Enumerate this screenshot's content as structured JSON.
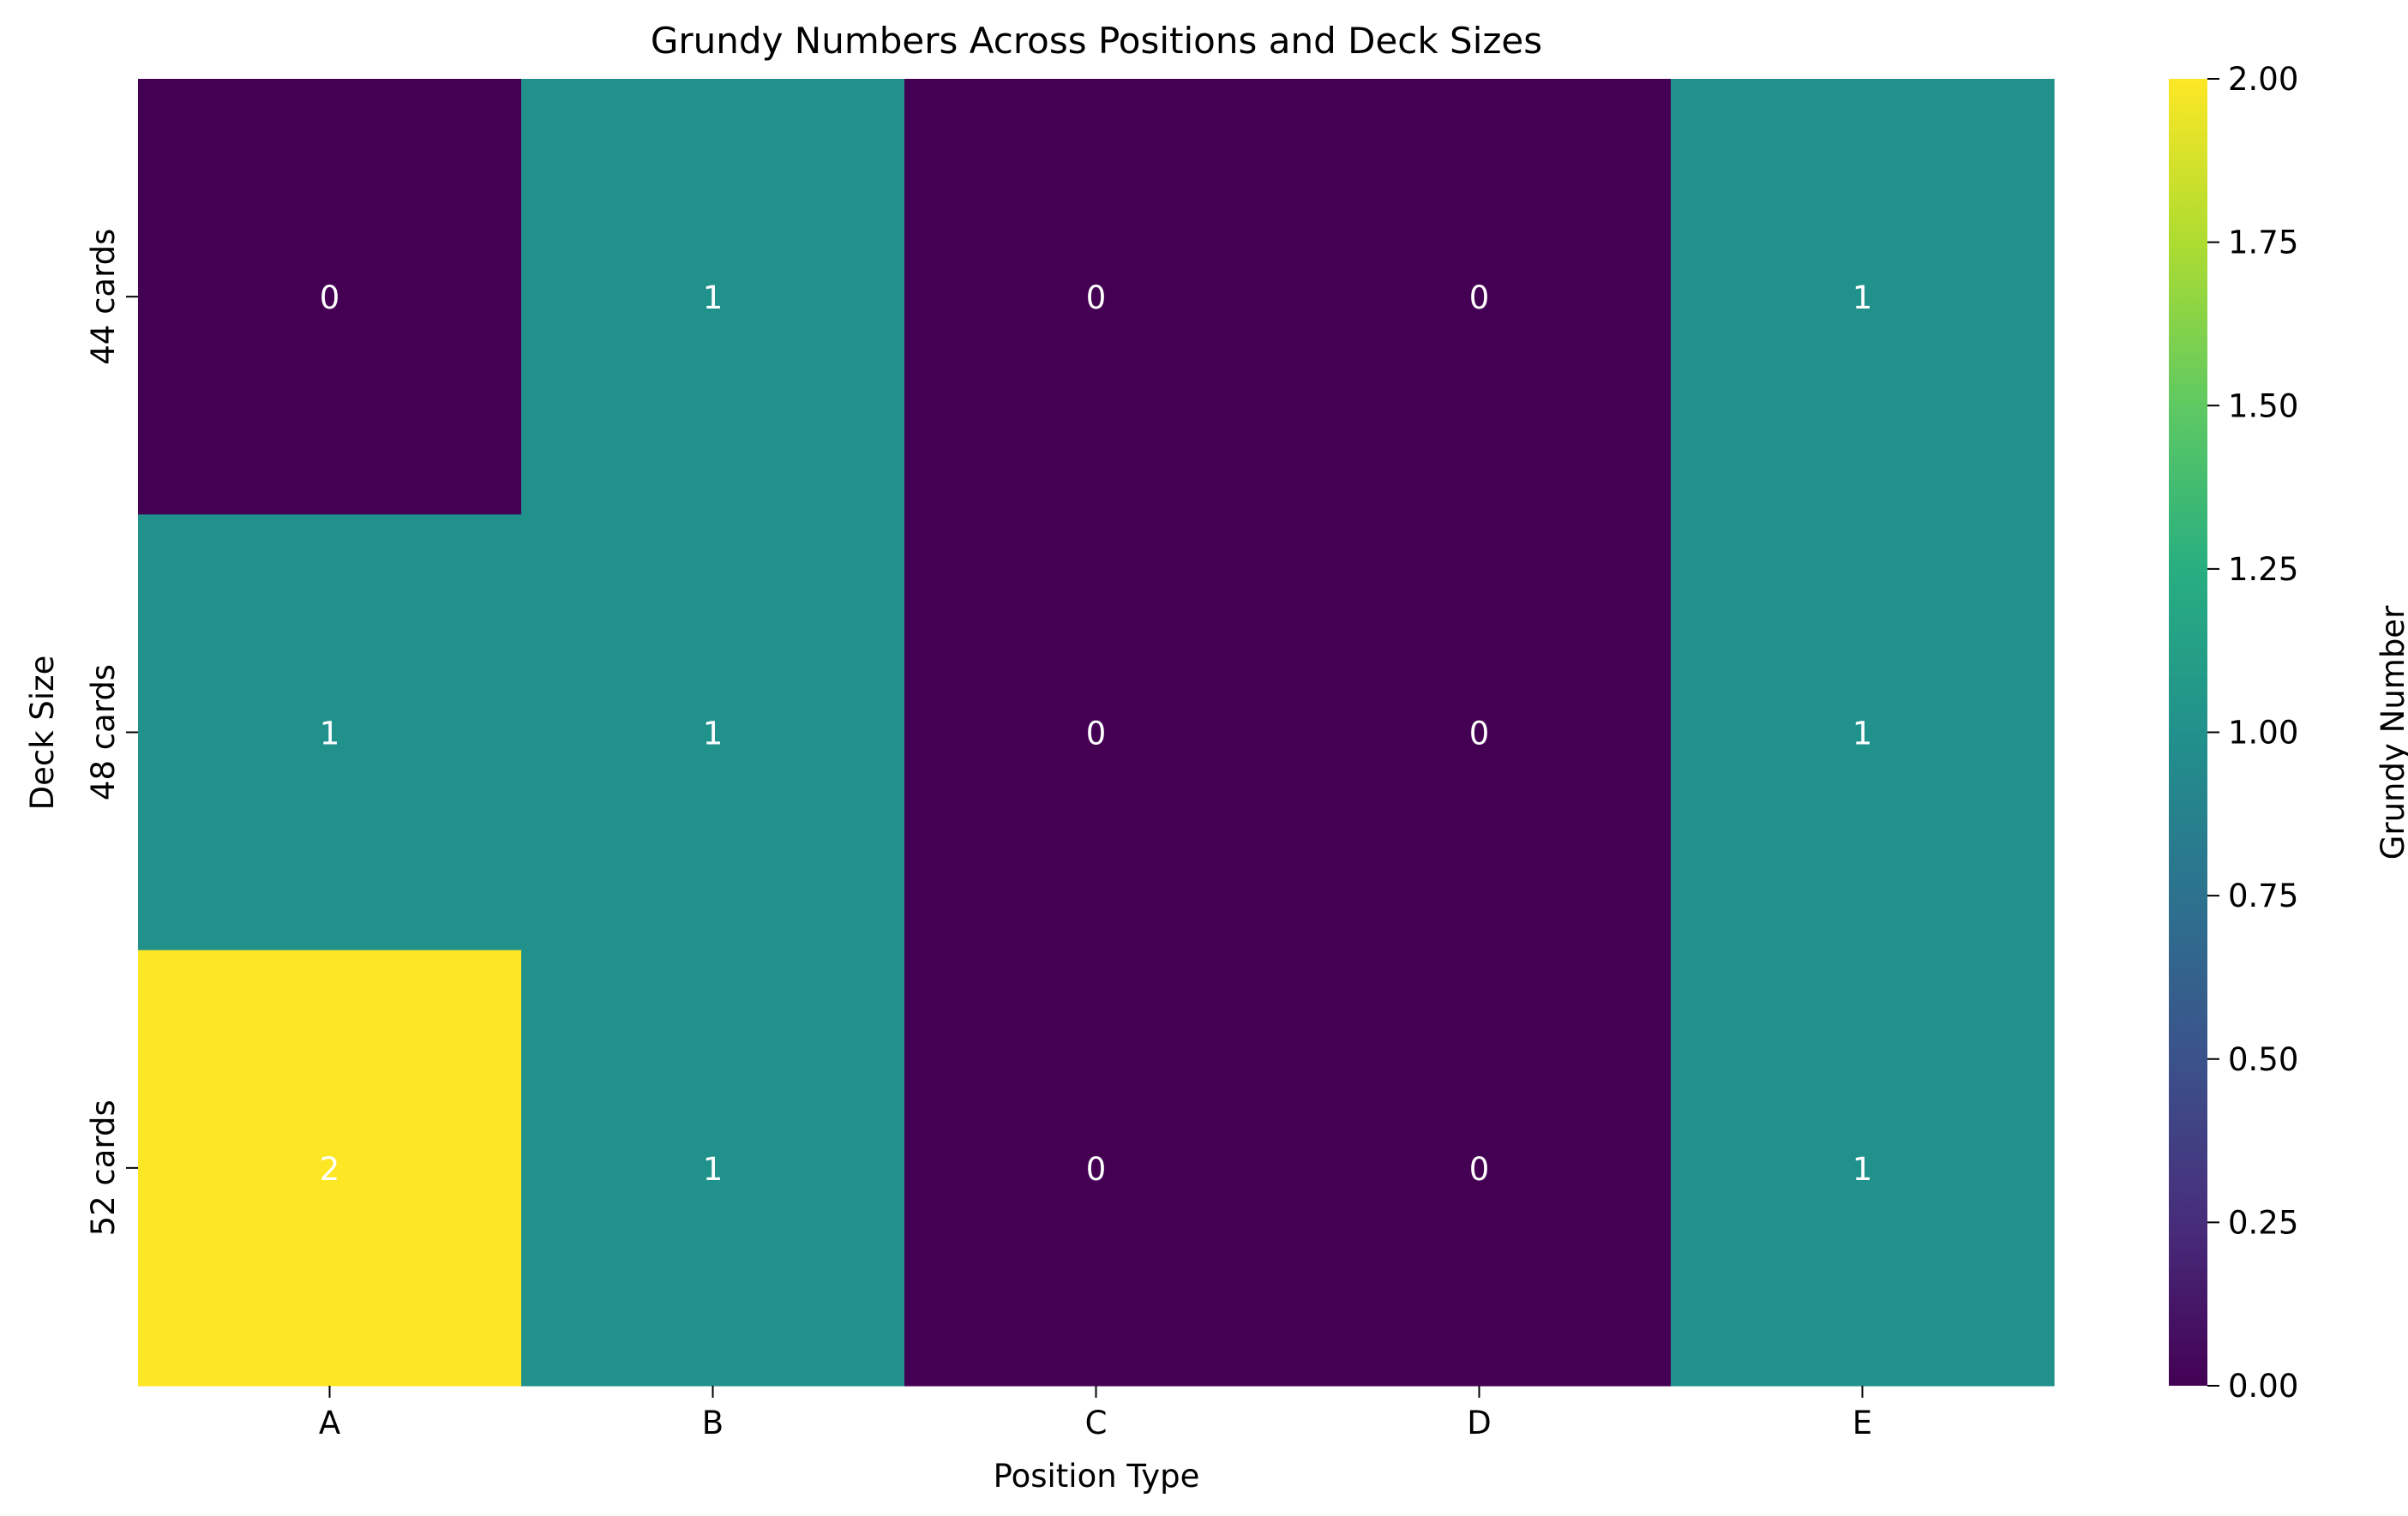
{
  "chart_data": {
    "type": "heatmap",
    "title": "Grundy Numbers Across Positions and Deck Sizes",
    "xlabel": "Position Type",
    "ylabel": "Deck Size",
    "x_categories": [
      "A",
      "B",
      "C",
      "D",
      "E"
    ],
    "y_categories": [
      "44 cards",
      "48 cards",
      "52 cards"
    ],
    "values": [
      [
        0,
        1,
        0,
        0,
        1
      ],
      [
        1,
        1,
        0,
        0,
        1
      ],
      [
        2,
        1,
        0,
        0,
        1
      ]
    ],
    "colormap": "viridis",
    "vmin": 0,
    "vmax": 2,
    "annotations": true,
    "annotation_color": "#ffffff",
    "colorbar": {
      "label": "Grundy Number",
      "ticks": [
        "0.00",
        "0.25",
        "0.50",
        "0.75",
        "1.00",
        "1.25",
        "1.50",
        "1.75",
        "2.00"
      ]
    }
  }
}
